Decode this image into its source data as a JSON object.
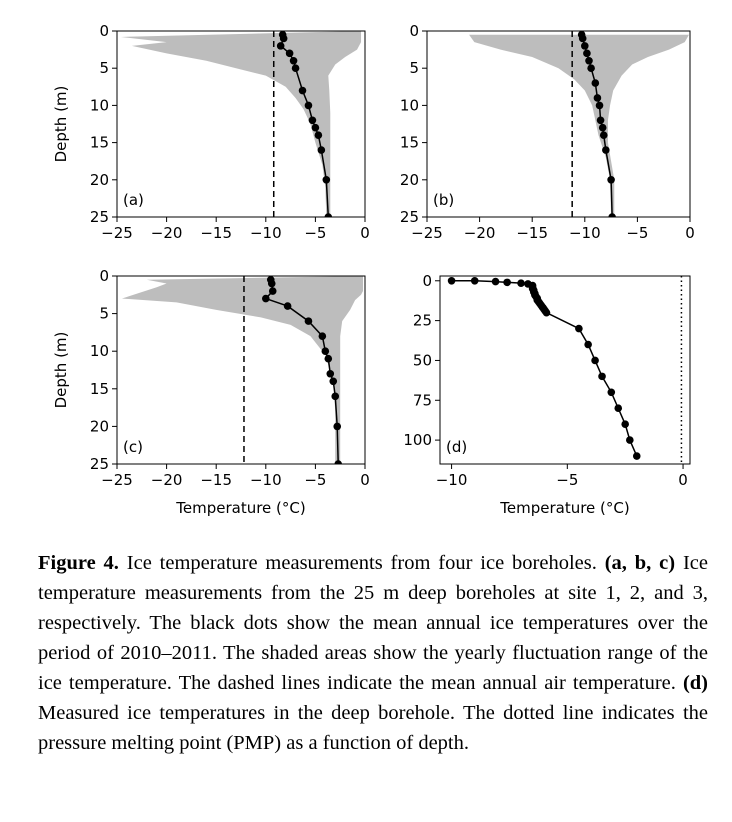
{
  "chart_data": [
    {
      "type": "line",
      "panel_label": "(a)",
      "ylabel": "Depth (m)",
      "xlabel": "",
      "xlim": [
        -25,
        0
      ],
      "ylim": [
        25,
        0
      ],
      "xticks": [
        -25,
        -20,
        -15,
        -10,
        -5,
        0
      ],
      "yticks": [
        0,
        5,
        10,
        15,
        20,
        25
      ],
      "series": [
        {
          "kind": "line-with-markers",
          "points": [
            [
              -8.3,
              0.5
            ],
            [
              -8.2,
              1.0
            ],
            [
              -8.5,
              2.0
            ],
            [
              -7.6,
              3.0
            ],
            [
              -7.2,
              4.0
            ],
            [
              -7.0,
              5.0
            ],
            [
              -6.3,
              8.0
            ],
            [
              -5.7,
              10.0
            ],
            [
              -5.3,
              12.0
            ],
            [
              -5.0,
              13.0
            ],
            [
              -4.7,
              14.0
            ],
            [
              -4.4,
              16.0
            ],
            [
              -3.9,
              20.0
            ],
            [
              -3.7,
              25.0
            ]
          ]
        },
        {
          "kind": "fluctuation-range",
          "min": [
            [
              -24.6,
              0.8
            ],
            [
              -20.0,
              1.5
            ],
            [
              -23.5,
              2.0
            ],
            [
              -20.0,
              3.0
            ],
            [
              -16.0,
              4.0
            ],
            [
              -13.0,
              5.0
            ],
            [
              -10.0,
              6.0
            ],
            [
              -8.0,
              7.5
            ],
            [
              -7.0,
              9.0
            ],
            [
              -6.2,
              10.5
            ],
            [
              -5.5,
              12.5
            ],
            [
              -5.0,
              15.0
            ],
            [
              -4.3,
              18.0
            ],
            [
              -4.0,
              21.0
            ],
            [
              -3.9,
              25.0
            ]
          ],
          "max": [
            [
              -0.4,
              0.0
            ],
            [
              -0.4,
              1.5
            ],
            [
              -0.8,
              2.5
            ],
            [
              -2.0,
              3.5
            ],
            [
              -3.0,
              4.5
            ],
            [
              -3.7,
              6.0
            ],
            [
              -3.6,
              8.0
            ],
            [
              -3.5,
              11.0
            ],
            [
              -3.5,
              15.0
            ],
            [
              -3.5,
              20.0
            ],
            [
              -3.5,
              25.0
            ]
          ]
        },
        {
          "kind": "dashed-vertical",
          "x": -9.2
        }
      ]
    },
    {
      "type": "line",
      "panel_label": "(b)",
      "xlim": [
        -25,
        0
      ],
      "ylim": [
        25,
        0
      ],
      "xticks": [
        -25,
        -20,
        -15,
        -10,
        -5,
        0
      ],
      "yticks": [
        0,
        5,
        10,
        15,
        20,
        25
      ],
      "series": [
        {
          "kind": "line-with-markers",
          "points": [
            [
              -10.3,
              0.5
            ],
            [
              -10.2,
              1.0
            ],
            [
              -10.0,
              2.0
            ],
            [
              -9.8,
              3.0
            ],
            [
              -9.6,
              4.0
            ],
            [
              -9.4,
              5.0
            ],
            [
              -9.0,
              7.0
            ],
            [
              -8.8,
              9.0
            ],
            [
              -8.6,
              10.0
            ],
            [
              -8.5,
              12.0
            ],
            [
              -8.3,
              13.0
            ],
            [
              -8.2,
              14.0
            ],
            [
              -8.0,
              16.0
            ],
            [
              -7.5,
              20.0
            ],
            [
              -7.4,
              25.0
            ]
          ]
        },
        {
          "kind": "fluctuation-range",
          "min": [
            [
              -21.0,
              0.5
            ],
            [
              -20.5,
              1.5
            ],
            [
              -18.0,
              2.5
            ],
            [
              -15.0,
              3.5
            ],
            [
              -12.5,
              5.0
            ],
            [
              -11.0,
              6.5
            ],
            [
              -10.0,
              8.0
            ],
            [
              -9.3,
              10.0
            ],
            [
              -9.0,
              12.0
            ],
            [
              -8.7,
              14.0
            ],
            [
              -8.0,
              17.0
            ],
            [
              -7.6,
              20.0
            ],
            [
              -7.5,
              25.0
            ]
          ],
          "max": [
            [
              -0.1,
              0.5
            ],
            [
              -0.5,
              1.5
            ],
            [
              -2.0,
              2.5
            ],
            [
              -4.0,
              3.5
            ],
            [
              -5.5,
              4.5
            ],
            [
              -6.5,
              6.0
            ],
            [
              -7.3,
              8.0
            ],
            [
              -7.6,
              10.0
            ],
            [
              -7.8,
              12.0
            ],
            [
              -7.8,
              15.0
            ],
            [
              -7.2,
              20.0
            ],
            [
              -7.2,
              25.0
            ]
          ]
        },
        {
          "kind": "dashed-vertical",
          "x": -11.2
        }
      ]
    },
    {
      "type": "line",
      "panel_label": "(c)",
      "ylabel": "Depth (m)",
      "xlabel": "Temperature (°C)",
      "xlim": [
        -25,
        0
      ],
      "ylim": [
        25,
        0
      ],
      "xticks": [
        -25,
        -20,
        -15,
        -10,
        -5,
        0
      ],
      "yticks": [
        0,
        5,
        10,
        15,
        20,
        25
      ],
      "series": [
        {
          "kind": "line-with-markers",
          "points": [
            [
              -9.5,
              0.5
            ],
            [
              -9.4,
              1.0
            ],
            [
              -9.3,
              2.0
            ],
            [
              -10.0,
              3.0
            ],
            [
              -7.8,
              4.0
            ],
            [
              -5.7,
              6.0
            ],
            [
              -4.3,
              8.0
            ],
            [
              -4.0,
              10.0
            ],
            [
              -3.7,
              11.0
            ],
            [
              -3.5,
              13.0
            ],
            [
              -3.2,
              14.0
            ],
            [
              -3.0,
              16.0
            ],
            [
              -2.8,
              20.0
            ],
            [
              -2.7,
              25.0
            ]
          ]
        },
        {
          "kind": "fluctuation-range",
          "min": [
            [
              -22.0,
              0.5
            ],
            [
              -20.0,
              1.0
            ],
            [
              -21.0,
              1.5
            ],
            [
              -24.5,
              3.0
            ],
            [
              -19.0,
              3.5
            ],
            [
              -15.0,
              4.5
            ],
            [
              -10.5,
              5.5
            ],
            [
              -7.5,
              6.5
            ],
            [
              -5.5,
              8.0
            ],
            [
              -4.0,
              10.5
            ],
            [
              -3.2,
              14.0
            ],
            [
              -3.0,
              18.0
            ],
            [
              -3.0,
              25.0
            ]
          ],
          "max": [
            [
              -0.2,
              0.0
            ],
            [
              -0.2,
              2.0
            ],
            [
              -0.4,
              2.5
            ],
            [
              -1.0,
              3.2
            ],
            [
              -1.5,
              4.5
            ],
            [
              -2.3,
              6.0
            ],
            [
              -2.5,
              8.0
            ],
            [
              -2.5,
              12.0
            ],
            [
              -2.5,
              20.0
            ],
            [
              -2.5,
              25.0
            ]
          ]
        },
        {
          "kind": "dashed-vertical",
          "x": -12.2
        }
      ]
    },
    {
      "type": "line",
      "panel_label": "(d)",
      "xlabel": "Temperature (°C)",
      "xlim": [
        -10.5,
        0.3
      ],
      "ylim": [
        115,
        -3
      ],
      "xticks": [
        -10,
        -5,
        0
      ],
      "yticks": [
        0,
        25,
        50,
        75,
        100
      ],
      "series": [
        {
          "kind": "line-with-markers",
          "points": [
            [
              -10.0,
              0.0
            ],
            [
              -9.0,
              0.0
            ],
            [
              -8.1,
              0.5
            ],
            [
              -7.6,
              1.0
            ],
            [
              -7.0,
              1.5
            ],
            [
              -6.7,
              2.0
            ],
            [
              -6.5,
              3.0
            ],
            [
              -6.5,
              4.0
            ],
            [
              -6.5,
              5.0
            ],
            [
              -6.45,
              6.0
            ],
            [
              -6.45,
              7.0
            ],
            [
              -6.4,
              8.0
            ],
            [
              -6.4,
              9.0
            ],
            [
              -6.35,
              10.0
            ],
            [
              -6.3,
              11.0
            ],
            [
              -6.3,
              12.0
            ],
            [
              -6.25,
              13.0
            ],
            [
              -6.2,
              14.0
            ],
            [
              -6.15,
              15.0
            ],
            [
              -6.1,
              16.0
            ],
            [
              -6.05,
              17.0
            ],
            [
              -6.0,
              18.0
            ],
            [
              -5.95,
              19.0
            ],
            [
              -5.9,
              20.0
            ],
            [
              -4.5,
              30.0
            ],
            [
              -4.1,
              40.0
            ],
            [
              -3.8,
              50.0
            ],
            [
              -3.5,
              60.0
            ],
            [
              -3.1,
              70.0
            ],
            [
              -2.8,
              80.0
            ],
            [
              -2.5,
              90.0
            ],
            [
              -2.3,
              100.0
            ],
            [
              -2.0,
              110.0
            ]
          ]
        },
        {
          "kind": "dotted-vertical",
          "x": -0.07
        }
      ]
    }
  ],
  "caption": {
    "label": "Figure 4.",
    "text1": " Ice temperature measurements from four ice boreholes. ",
    "label_abc": "(a, b, c)",
    "text2": " Ice temperature measurements from the 25 m deep boreholes at site 1, 2, and 3, respectively. The black dots show the mean annual ice temperatures over the period of 2010–2011. The shaded areas show the yearly fluctuation range of the ice temperature. The dashed lines indicate the mean annual air temperature. ",
    "label_d": "(d)",
    "text3": " Measured ice temperatures in the deep borehole. The dotted line indicates the pressure melting point (PMP) as a function of depth."
  }
}
